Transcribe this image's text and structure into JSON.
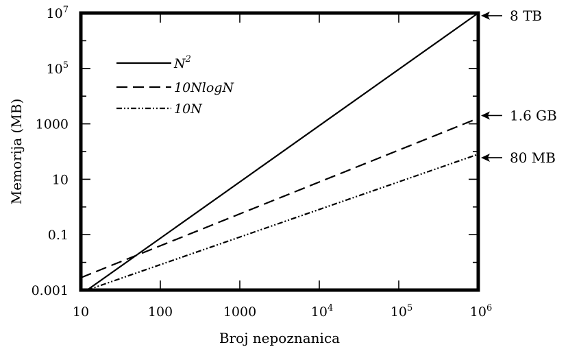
{
  "chart_data": {
    "type": "line",
    "title": "",
    "xlabel": "Broj nepoznanica",
    "ylabel": "Memorija (MB)",
    "xscale": "log",
    "yscale": "log",
    "xlim": [
      10,
      1000000
    ],
    "ylim": [
      0.001,
      10000000
    ],
    "grid": false,
    "legend_position": "top-left",
    "x_ticks": [
      {
        "value": 10,
        "label": "10"
      },
      {
        "value": 100,
        "label": "100"
      },
      {
        "value": 1000,
        "label": "1000"
      },
      {
        "value": 10000,
        "base": "10",
        "exp": "4"
      },
      {
        "value": 100000,
        "base": "10",
        "exp": "5"
      },
      {
        "value": 1000000,
        "base": "10",
        "exp": "6"
      }
    ],
    "y_ticks": [
      {
        "value": 0.001,
        "label": "0.001"
      },
      {
        "value": 0.1,
        "label": "0.1"
      },
      {
        "value": 10,
        "label": "10"
      },
      {
        "value": 1000,
        "label": "1000"
      },
      {
        "value": 100000,
        "base": "10",
        "exp": "5"
      },
      {
        "value": 10000000,
        "base": "10",
        "exp": "7"
      }
    ],
    "series": [
      {
        "name": "N²",
        "name_base": "N",
        "name_exp": "2",
        "style": "solid",
        "color": "#000000",
        "x": [
          12,
          1000000
        ],
        "y": [
          0.001,
          10000000
        ]
      },
      {
        "name": "10NlogN",
        "style": "dashed",
        "color": "#000000",
        "x": [
          10,
          1000000
        ],
        "y": [
          0.0028,
          1600
        ]
      },
      {
        "name": "10N",
        "style": "dashdotdot",
        "color": "#000000",
        "x": [
          12,
          1000000
        ],
        "y": [
          0.001,
          80
        ]
      }
    ],
    "annotations": [
      {
        "text": "8 TB",
        "x": 1000000,
        "y": 8000000
      },
      {
        "text": "1.6 GB",
        "x": 1000000,
        "y": 2000
      },
      {
        "text": "80 MB",
        "x": 1000000,
        "y": 60
      }
    ]
  }
}
